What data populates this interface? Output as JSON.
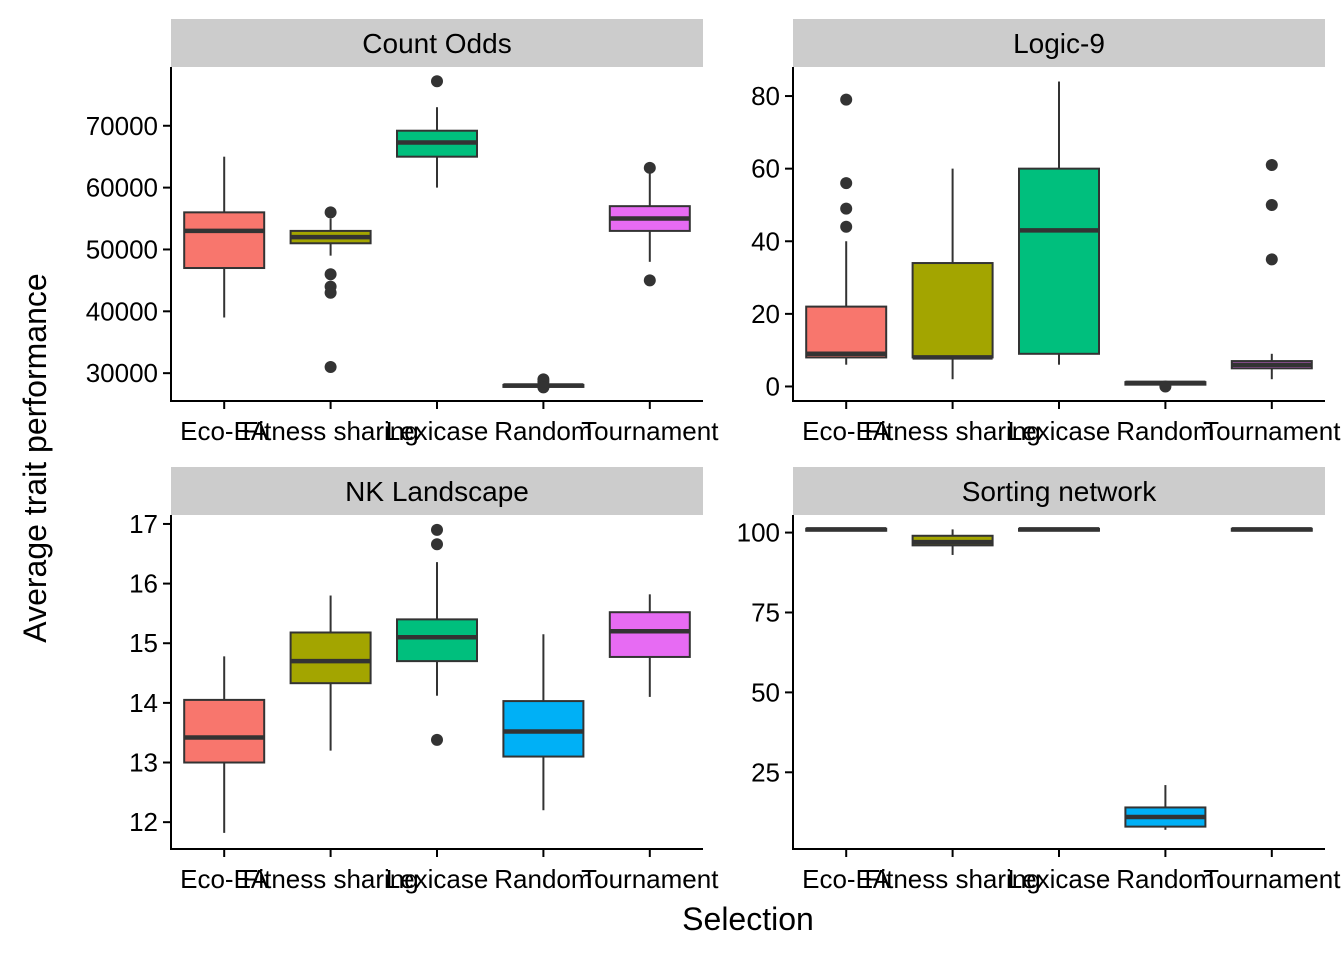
{
  "chart_data": {
    "type": "boxplot",
    "layout": "facet-grid 2x2",
    "xlabel": "Selection",
    "ylabel": "Average trait performance",
    "categories": [
      "Eco-EA",
      "Fitness sharing",
      "Lexicase",
      "Random",
      "Tournament"
    ],
    "category_colors": [
      "#F8766D",
      "#A3A500",
      "#00BF7D",
      "#00B0F6",
      "#E76BF3"
    ],
    "panels": [
      {
        "title": "Count Odds",
        "ylim": [
          25500,
          79500
        ],
        "yticks": [
          30000,
          40000,
          50000,
          60000,
          70000
        ],
        "boxes": [
          {
            "category": "Eco-EA",
            "low": 39000,
            "q1": 47000,
            "median": 53000,
            "q3": 56000,
            "high": 65000,
            "outliers": []
          },
          {
            "category": "Fitness sharing",
            "low": 49000,
            "q1": 51000,
            "median": 52000,
            "q3": 53000,
            "high": 55000,
            "outliers": [
              56000,
              46000,
              44000,
              43000,
              31000
            ]
          },
          {
            "category": "Lexicase",
            "low": 60000,
            "q1": 65000,
            "median": 67300,
            "q3": 69200,
            "high": 73000,
            "outliers": [
              77200
            ]
          },
          {
            "category": "Random",
            "low": 27700,
            "q1": 27850,
            "median": 28000,
            "q3": 28100,
            "high": 28300,
            "outliers": [
              29000,
              28600,
              27700
            ]
          },
          {
            "category": "Tournament",
            "low": 48000,
            "q1": 53000,
            "median": 55000,
            "q3": 57000,
            "high": 63000,
            "outliers": [
              63200,
              45000
            ]
          }
        ]
      },
      {
        "title": "Logic-9",
        "ylim": [
          -4,
          88
        ],
        "yticks": [
          0,
          20,
          40,
          60,
          80
        ],
        "boxes": [
          {
            "category": "Eco-EA",
            "low": 6,
            "q1": 8,
            "median": 9,
            "q3": 22,
            "high": 40,
            "outliers": [
              79,
              56,
              49,
              44
            ]
          },
          {
            "category": "Fitness sharing",
            "low": 2,
            "q1": 8,
            "median": 8,
            "q3": 34,
            "high": 60,
            "outliers": []
          },
          {
            "category": "Lexicase",
            "low": 6,
            "q1": 9,
            "median": 43,
            "q3": 60,
            "high": 84,
            "outliers": []
          },
          {
            "category": "Random",
            "low": 0.5,
            "q1": 0.5,
            "median": 1,
            "q3": 1.2,
            "high": 1.5,
            "outliers": [
              0
            ]
          },
          {
            "category": "Tournament",
            "low": 2,
            "q1": 5,
            "median": 6,
            "q3": 7,
            "high": 9,
            "outliers": [
              61,
              50,
              35
            ]
          }
        ]
      },
      {
        "title": "NK Landscape",
        "ylim": [
          11.55,
          17.15
        ],
        "yticks": [
          12,
          13,
          14,
          15,
          16,
          17
        ],
        "boxes": [
          {
            "category": "Eco-EA",
            "low": 11.82,
            "q1": 13.0,
            "median": 13.42,
            "q3": 14.05,
            "high": 14.78,
            "outliers": []
          },
          {
            "category": "Fitness sharing",
            "low": 13.2,
            "q1": 14.33,
            "median": 14.7,
            "q3": 15.18,
            "high": 15.8,
            "outliers": []
          },
          {
            "category": "Lexicase",
            "low": 14.12,
            "q1": 14.7,
            "median": 15.1,
            "q3": 15.4,
            "high": 16.36,
            "outliers": [
              16.9,
              16.66,
              13.38
            ]
          },
          {
            "category": "Random",
            "low": 12.2,
            "q1": 13.1,
            "median": 13.52,
            "q3": 14.03,
            "high": 15.15,
            "outliers": []
          },
          {
            "category": "Tournament",
            "low": 14.1,
            "q1": 14.77,
            "median": 15.2,
            "q3": 15.52,
            "high": 15.82,
            "outliers": []
          }
        ]
      },
      {
        "title": "Sorting network",
        "ylim": [
          1,
          105.5
        ],
        "yticks": [
          25,
          50,
          75,
          100
        ],
        "boxes": [
          {
            "category": "Eco-EA",
            "low": 100.8,
            "q1": 100.8,
            "median": 101,
            "q3": 101.2,
            "high": 101.2,
            "outliers": []
          },
          {
            "category": "Fitness sharing",
            "low": 93,
            "q1": 96,
            "median": 97,
            "q3": 99,
            "high": 101,
            "outliers": []
          },
          {
            "category": "Lexicase",
            "low": 100.8,
            "q1": 100.8,
            "median": 101,
            "q3": 101.2,
            "high": 101.2,
            "outliers": []
          },
          {
            "category": "Random",
            "low": 7,
            "q1": 8,
            "median": 11,
            "q3": 14,
            "high": 21,
            "outliers": []
          },
          {
            "category": "Tournament",
            "low": 100.8,
            "q1": 100.8,
            "median": 101,
            "q3": 101.2,
            "high": 101.2,
            "outliers": []
          }
        ]
      }
    ]
  }
}
